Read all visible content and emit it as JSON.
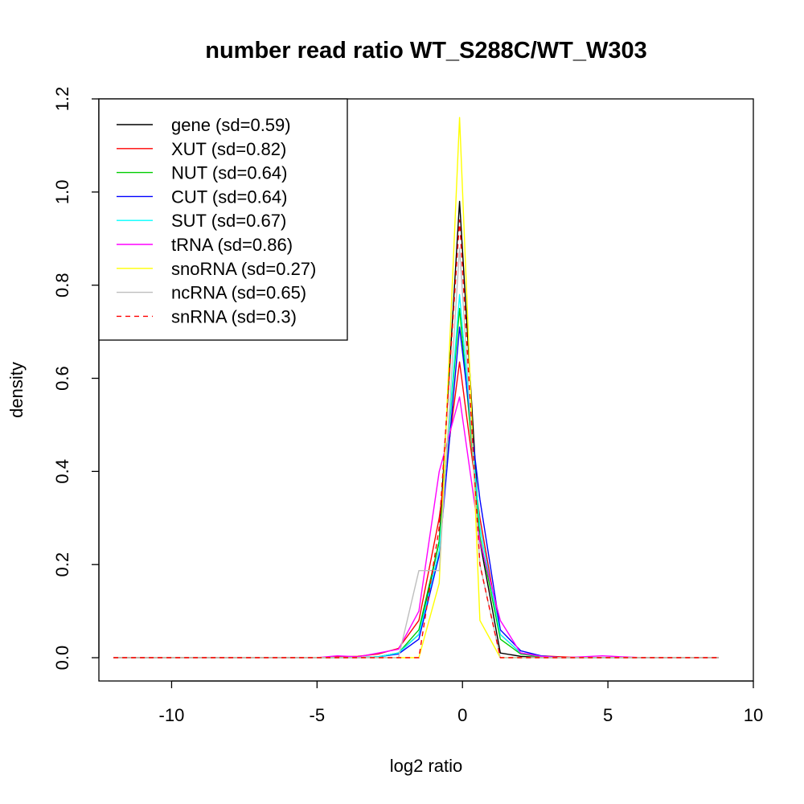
{
  "chart_data": {
    "type": "line",
    "title": "number read ratio WT_S288C/WT_W303",
    "xlabel": "log2 ratio",
    "ylabel": "density",
    "xlim": [
      -12.5,
      10.0
    ],
    "ylim": [
      -0.05,
      1.2
    ],
    "xticks": [
      -10,
      -5,
      0,
      5,
      10
    ],
    "xtick_labels": [
      "-10",
      "-5",
      "0",
      "5",
      "10"
    ],
    "yticks": [
      0.0,
      0.2,
      0.4,
      0.6,
      0.8,
      1.0,
      1.2
    ],
    "ytick_labels": [
      "0.0",
      "0.2",
      "0.4",
      "0.6",
      "0.8",
      "1.0",
      "1.2"
    ],
    "grid": false,
    "legend_position": "top-left",
    "x": [
      -12.0,
      -11.3,
      -10.6,
      -9.9,
      -9.2,
      -8.5,
      -7.8,
      -7.1,
      -6.4,
      -5.7,
      -5.0,
      -4.3,
      -3.6,
      -2.9,
      -2.2,
      -1.5,
      -0.8,
      -0.1,
      0.6,
      1.3,
      2.0,
      2.7,
      3.4,
      4.1,
      4.8,
      5.5,
      6.2,
      6.9,
      7.6,
      8.3,
      8.8
    ],
    "series": [
      {
        "name": "gene (sd=0.59)",
        "color": "#000000",
        "dash": "solid",
        "values": [
          0,
          0,
          0,
          0,
          0,
          0,
          0,
          0,
          0,
          0,
          0,
          0,
          0,
          0.002,
          0.01,
          0.05,
          0.25,
          0.98,
          0.25,
          0.01,
          0.003,
          0,
          0,
          0,
          0,
          0,
          0,
          0,
          0,
          0,
          0
        ]
      },
      {
        "name": "XUT (sd=0.82)",
        "color": "#ff0000",
        "dash": "solid",
        "values": [
          0,
          0,
          0,
          0,
          0,
          0,
          0,
          0,
          0,
          0,
          0,
          0.002,
          0.003,
          0.008,
          0.02,
          0.08,
          0.3,
          0.635,
          0.3,
          0.05,
          0.01,
          0.004,
          0.002,
          0,
          0,
          0,
          0,
          0,
          0,
          0,
          0
        ]
      },
      {
        "name": "NUT (sd=0.64)",
        "color": "#00cd00",
        "dash": "solid",
        "values": [
          0,
          0,
          0,
          0,
          0,
          0,
          0,
          0,
          0,
          0,
          0,
          0,
          0,
          0.002,
          0.01,
          0.06,
          0.25,
          0.75,
          0.26,
          0.04,
          0.008,
          0.002,
          0,
          0,
          0,
          0,
          0,
          0,
          0,
          0,
          0
        ]
      },
      {
        "name": "CUT (sd=0.64)",
        "color": "#0000ff",
        "dash": "solid",
        "values": [
          0,
          0,
          0,
          0,
          0,
          0,
          0,
          0,
          0,
          0,
          0,
          0,
          0,
          0.002,
          0.008,
          0.04,
          0.22,
          0.71,
          0.34,
          0.06,
          0.015,
          0.004,
          0,
          0,
          0,
          0,
          0,
          0,
          0,
          0,
          0
        ]
      },
      {
        "name": "SUT (sd=0.67)",
        "color": "#00ffff",
        "dash": "solid",
        "values": [
          0,
          0,
          0,
          0,
          0,
          0,
          0,
          0,
          0,
          0,
          0,
          0,
          0,
          0.002,
          0.01,
          0.05,
          0.23,
          0.78,
          0.28,
          0.05,
          0.01,
          0.003,
          0,
          0,
          0,
          0,
          0,
          0,
          0,
          0,
          0
        ]
      },
      {
        "name": "tRNA (sd=0.86)",
        "color": "#ff00ff",
        "dash": "solid",
        "values": [
          0,
          0,
          0,
          0,
          0,
          0,
          0,
          0,
          0,
          0,
          0,
          0.004,
          0.002,
          0.01,
          0.018,
          0.1,
          0.4,
          0.56,
          0.25,
          0.08,
          0.01,
          0.003,
          0,
          0.002,
          0.004,
          0.002,
          0,
          0,
          0,
          0,
          0
        ]
      },
      {
        "name": "snoRNA (sd=0.27)",
        "color": "#ffff00",
        "dash": "solid",
        "values": [
          0,
          0,
          0,
          0,
          0,
          0,
          0,
          0,
          0,
          0,
          0,
          0,
          0,
          0,
          0,
          0,
          0.16,
          1.16,
          0.08,
          0,
          0,
          0,
          0,
          0,
          0,
          0,
          0,
          0,
          0,
          0,
          0
        ]
      },
      {
        "name": "ncRNA (sd=0.65)",
        "color": "#bebebe",
        "dash": "solid",
        "values": [
          0,
          0,
          0,
          0,
          0,
          0,
          0,
          0,
          0,
          0,
          0,
          0,
          0,
          0,
          0,
          0.187,
          0.187,
          0.88,
          0.2,
          0,
          0,
          0,
          0,
          0,
          0,
          0,
          0,
          0,
          0,
          0,
          0
        ]
      },
      {
        "name": "snRNA (sd=0.3)",
        "color": "#ff0000",
        "dash": "dashed",
        "values": [
          0,
          0,
          0,
          0,
          0,
          0,
          0,
          0,
          0,
          0,
          0,
          0,
          0,
          0,
          0,
          0,
          0.28,
          0.94,
          0.2,
          0,
          0,
          0,
          0,
          0,
          0,
          0,
          0,
          0,
          0,
          0,
          0
        ]
      }
    ]
  }
}
